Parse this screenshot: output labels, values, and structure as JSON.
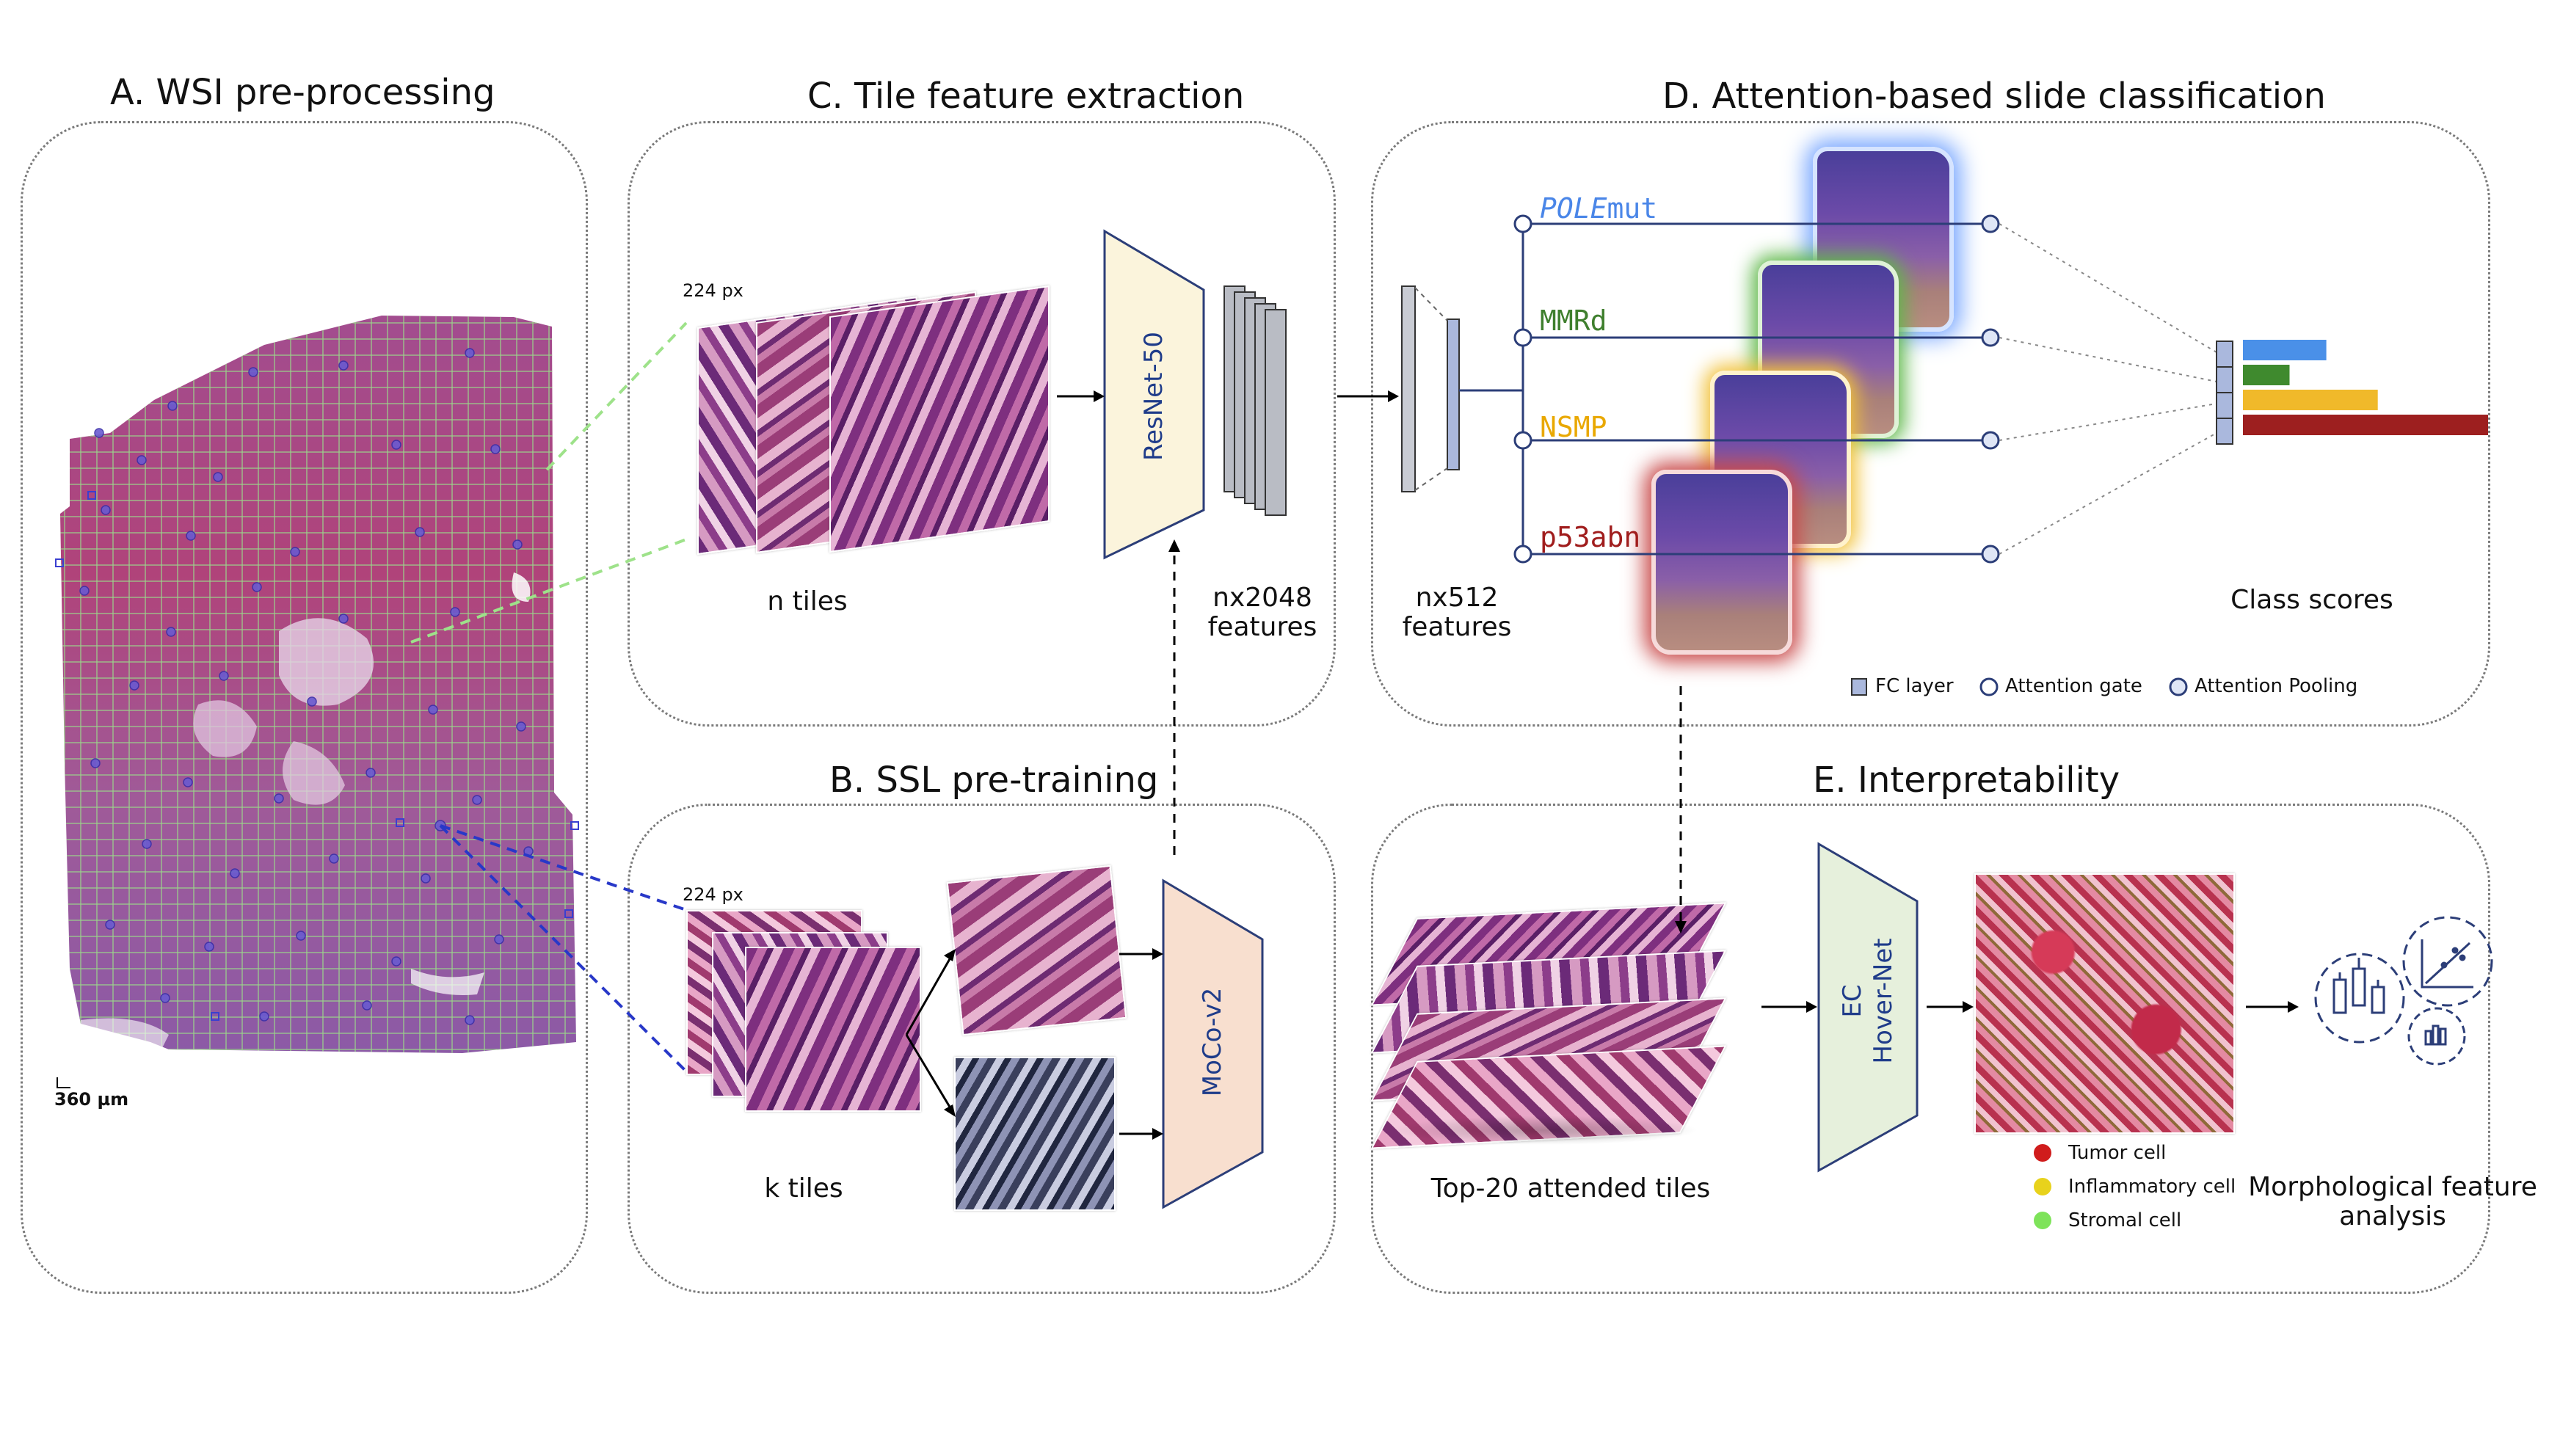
{
  "panels": {
    "a": {
      "title": "A. WSI pre-processing",
      "scale_bar": "360 µm"
    },
    "c": {
      "title": "C. Tile feature extraction",
      "tile_size": "224 px",
      "tiles_label": "n tiles",
      "network": "ResNet-50",
      "features": "nx2048\nfeatures"
    },
    "b": {
      "title": "B. SSL pre-training",
      "tile_size": "224 px",
      "tiles_label": "k tiles",
      "network": "MoCo-v2"
    },
    "d": {
      "title": "D. Attention-based slide classification",
      "features": "nx512\nfeatures",
      "classes": [
        {
          "name_italic": "POLE",
          "name_rest": "mut",
          "color": "#4a86e8"
        },
        {
          "name_italic": "",
          "name_rest": "MMRd",
          "color": "#3f7f2e"
        },
        {
          "name_italic": "",
          "name_rest": "NSMP",
          "color": "#e9a800"
        },
        {
          "name_italic": "",
          "name_rest": "p53abn",
          "color": "#a01d1d"
        }
      ],
      "class_scores_label": "Class scores",
      "score_values": [
        0.34,
        0.19,
        0.55,
        1.0
      ],
      "legend": {
        "fc": "FC layer",
        "gate": "Attention gate",
        "pool": "Attention Pooling"
      }
    },
    "e": {
      "title": "E. Interpretability",
      "tiles_label": "Top-20 attended tiles",
      "network_line1": "EC",
      "network_line2": "Hover-Net",
      "cells": [
        {
          "label": "Tumor cell",
          "color": "#d01c1c"
        },
        {
          "label": "Inflammatory cell",
          "color": "#e8d21c"
        },
        {
          "label": "Stromal cell",
          "color": "#7ee35a"
        }
      ],
      "analysis": "Morphological feature\nanalysis"
    }
  },
  "colors": {
    "fc_fill": "#aab8dd",
    "resnet_fill": "#fbf4dc",
    "moco_fill": "#f8dfcf",
    "hover_fill": "#e6f0dc",
    "score_bars": [
      "#4a90e8",
      "#3f8a2e",
      "#f0b92a",
      "#9d1f1f"
    ]
  }
}
